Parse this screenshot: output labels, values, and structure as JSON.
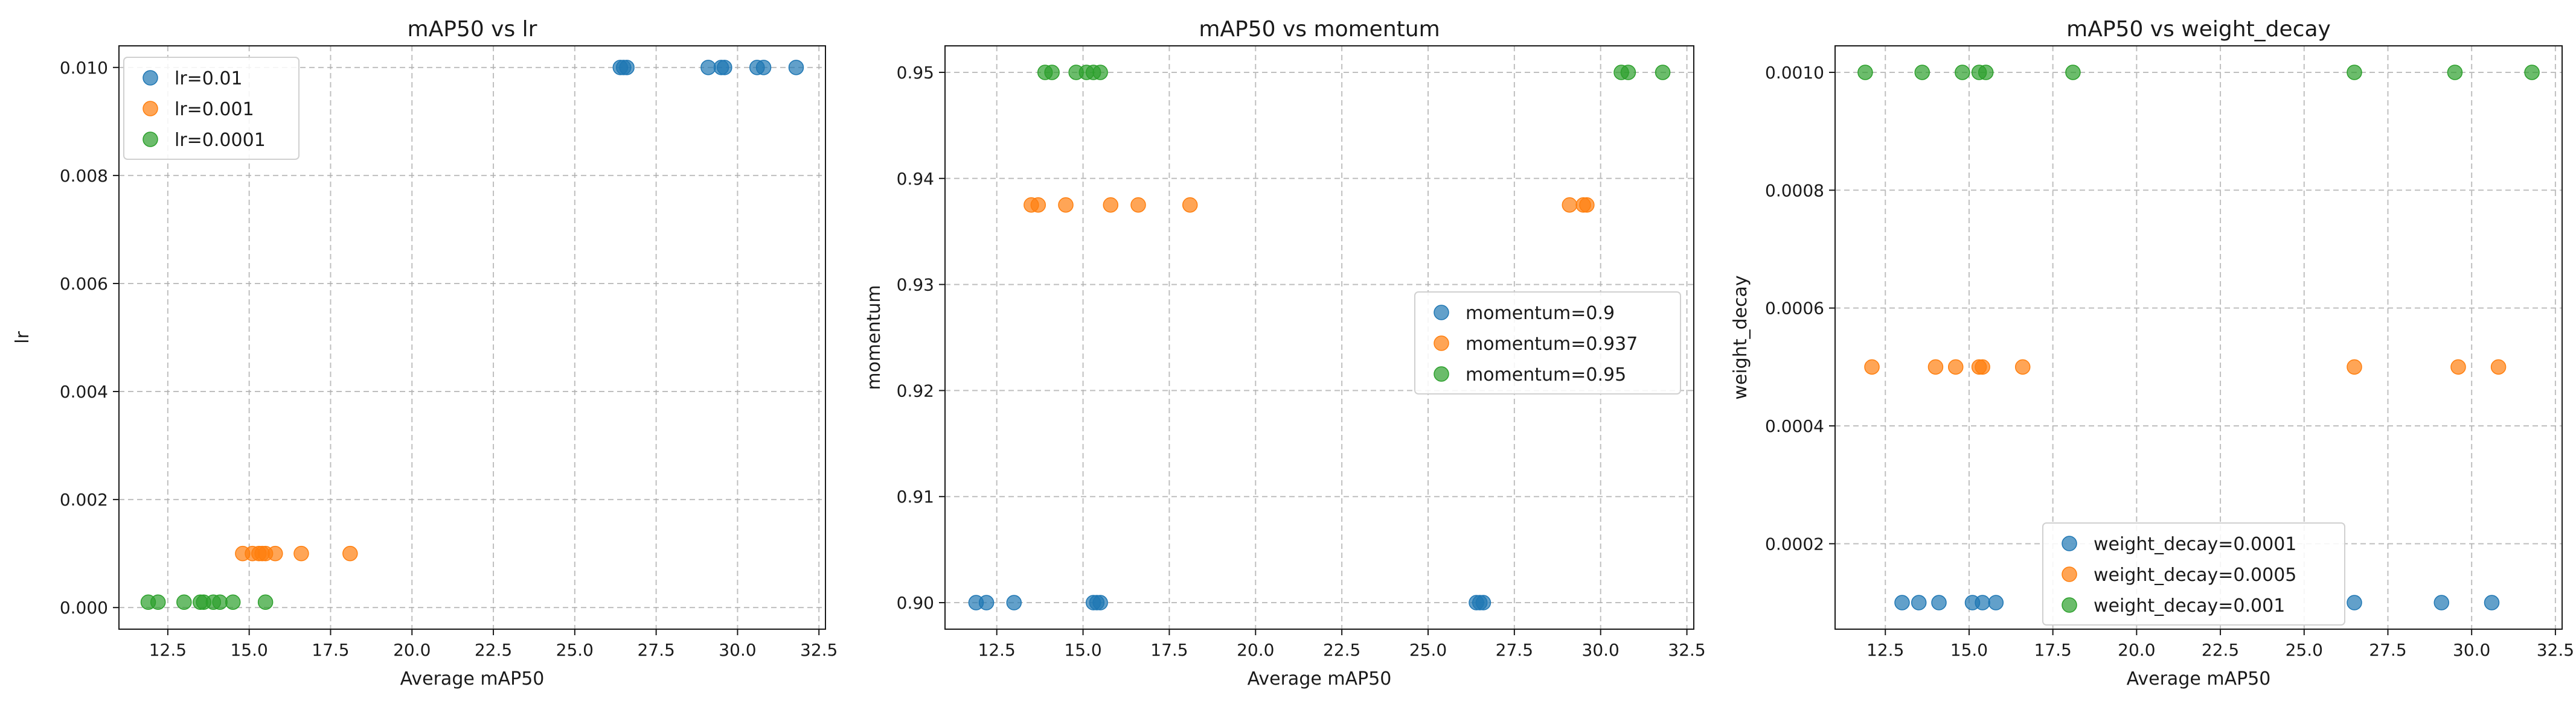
{
  "colors": {
    "blue": "#1f77b4",
    "orange": "#ff7f0e",
    "green": "#2ca02c"
  },
  "chart_data": [
    {
      "type": "scatter",
      "title": "mAP50 vs lr",
      "xlabel": "Average mAP50",
      "ylabel": "lr",
      "xlim": [
        11.0,
        32.7
      ],
      "ylim": [
        -0.0004,
        0.0104
      ],
      "xticks": [
        "12.5",
        "15.0",
        "17.5",
        "20.0",
        "22.5",
        "25.0",
        "27.5",
        "30.0",
        "32.5"
      ],
      "yticks": [
        "0.000",
        "0.002",
        "0.004",
        "0.006",
        "0.008",
        "0.010"
      ],
      "grid": true,
      "legend": "upper left",
      "series": [
        {
          "name": "lr=0.01",
          "color": "#1f77b4",
          "points": [
            [
              26.4,
              0.01
            ],
            [
              26.5,
              0.01
            ],
            [
              26.6,
              0.01
            ],
            [
              29.1,
              0.01
            ],
            [
              29.5,
              0.01
            ],
            [
              29.6,
              0.01
            ],
            [
              30.6,
              0.01
            ],
            [
              30.8,
              0.01
            ],
            [
              31.8,
              0.01
            ]
          ]
        },
        {
          "name": "lr=0.001",
          "color": "#ff7f0e",
          "points": [
            [
              14.8,
              0.001
            ],
            [
              15.1,
              0.001
            ],
            [
              15.3,
              0.001
            ],
            [
              15.4,
              0.001
            ],
            [
              15.5,
              0.001
            ],
            [
              15.8,
              0.001
            ],
            [
              16.6,
              0.001
            ],
            [
              18.1,
              0.001
            ]
          ]
        },
        {
          "name": "lr=0.0001",
          "color": "#2ca02c",
          "points": [
            [
              11.9,
              0.0001
            ],
            [
              12.2,
              0.0001
            ],
            [
              13.0,
              0.0001
            ],
            [
              13.5,
              0.0001
            ],
            [
              13.6,
              0.0001
            ],
            [
              13.9,
              0.0001
            ],
            [
              14.1,
              0.0001
            ],
            [
              14.5,
              0.0001
            ],
            [
              15.5,
              0.0001
            ]
          ]
        }
      ]
    },
    {
      "type": "scatter",
      "title": "mAP50 vs momentum",
      "xlabel": "Average mAP50",
      "ylabel": "momentum",
      "xlim": [
        11.0,
        32.7
      ],
      "ylim": [
        0.8975,
        0.9525
      ],
      "xticks": [
        "12.5",
        "15.0",
        "17.5",
        "20.0",
        "22.5",
        "25.0",
        "27.5",
        "30.0",
        "32.5"
      ],
      "yticks": [
        "0.90",
        "0.91",
        "0.92",
        "0.93",
        "0.94",
        "0.95"
      ],
      "grid": true,
      "legend": "center right",
      "series": [
        {
          "name": "momentum=0.9",
          "color": "#1f77b4",
          "points": [
            [
              11.9,
              0.9
            ],
            [
              12.2,
              0.9
            ],
            [
              13.0,
              0.9
            ],
            [
              15.3,
              0.9
            ],
            [
              15.4,
              0.9
            ],
            [
              15.5,
              0.9
            ],
            [
              26.4,
              0.9
            ],
            [
              26.5,
              0.9
            ],
            [
              26.6,
              0.9
            ]
          ]
        },
        {
          "name": "momentum=0.937",
          "color": "#ff7f0e",
          "points": [
            [
              13.5,
              0.9375
            ],
            [
              13.7,
              0.9375
            ],
            [
              14.5,
              0.9375
            ],
            [
              15.8,
              0.9375
            ],
            [
              16.6,
              0.9375
            ],
            [
              18.1,
              0.9375
            ],
            [
              29.1,
              0.9375
            ],
            [
              29.5,
              0.9375
            ],
            [
              29.6,
              0.9375
            ]
          ]
        },
        {
          "name": "momentum=0.95",
          "color": "#2ca02c",
          "points": [
            [
              13.9,
              0.95
            ],
            [
              14.1,
              0.95
            ],
            [
              14.8,
              0.95
            ],
            [
              15.1,
              0.95
            ],
            [
              15.3,
              0.95
            ],
            [
              15.5,
              0.95
            ],
            [
              30.6,
              0.95
            ],
            [
              30.8,
              0.95
            ],
            [
              31.8,
              0.95
            ]
          ]
        }
      ]
    },
    {
      "type": "scatter",
      "title": "mAP50 vs weight_decay",
      "xlabel": "Average mAP50",
      "ylabel": "weight_decay",
      "xlim": [
        11.0,
        32.7
      ],
      "ylim": [
        5.5e-05,
        0.001045
      ],
      "xticks": [
        "12.5",
        "15.0",
        "17.5",
        "20.0",
        "22.5",
        "25.0",
        "27.5",
        "30.0",
        "32.5"
      ],
      "yticks": [
        "0.0002",
        "0.0004",
        "0.0006",
        "0.0008",
        "0.0010"
      ],
      "grid": true,
      "legend": "lower center",
      "series": [
        {
          "name": "weight_decay=0.0001",
          "color": "#1f77b4",
          "points": [
            [
              13.0,
              0.0001
            ],
            [
              13.5,
              0.0001
            ],
            [
              14.1,
              0.0001
            ],
            [
              15.1,
              0.0001
            ],
            [
              15.4,
              0.0001
            ],
            [
              15.8,
              0.0001
            ],
            [
              26.5,
              0.0001
            ],
            [
              29.1,
              0.0001
            ],
            [
              30.6,
              0.0001
            ]
          ]
        },
        {
          "name": "weight_decay=0.0005",
          "color": "#ff7f0e",
          "points": [
            [
              12.1,
              0.0005
            ],
            [
              14.0,
              0.0005
            ],
            [
              14.6,
              0.0005
            ],
            [
              15.3,
              0.0005
            ],
            [
              15.4,
              0.0005
            ],
            [
              16.6,
              0.0005
            ],
            [
              26.5,
              0.0005
            ],
            [
              29.6,
              0.0005
            ],
            [
              30.8,
              0.0005
            ]
          ]
        },
        {
          "name": "weight_decay=0.001",
          "color": "#2ca02c",
          "points": [
            [
              11.9,
              0.001
            ],
            [
              13.6,
              0.001
            ],
            [
              14.8,
              0.001
            ],
            [
              15.3,
              0.001
            ],
            [
              15.5,
              0.001
            ],
            [
              18.1,
              0.001
            ],
            [
              26.5,
              0.001
            ],
            [
              29.5,
              0.001
            ],
            [
              31.8,
              0.001
            ]
          ]
        }
      ]
    }
  ]
}
